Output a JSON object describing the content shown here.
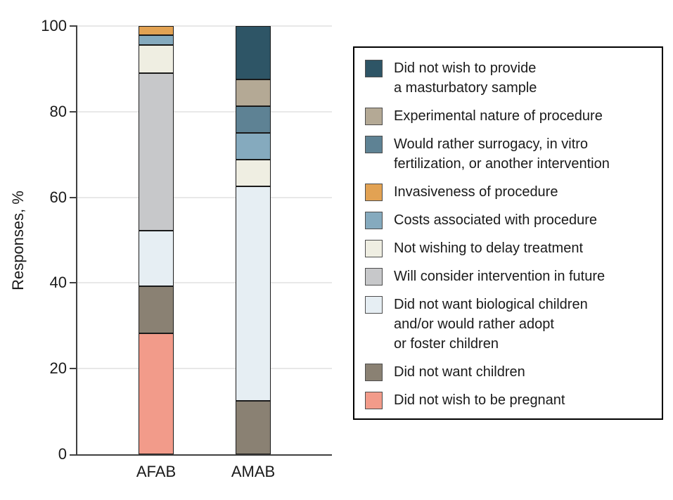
{
  "chart_data": {
    "type": "stacked_bar",
    "title": "",
    "ylabel": "Responses, %",
    "xlabel": "",
    "ylim": [
      0,
      100
    ],
    "yticks": [
      0,
      20,
      40,
      60,
      80,
      100
    ],
    "grid": "horizontal",
    "legend_position": "right",
    "categories": [
      "AFAB",
      "AMAB"
    ],
    "series": [
      {
        "name": "Did not wish to be pregnant",
        "color": "#F29B8A",
        "values": [
          28.2,
          0
        ]
      },
      {
        "name": "Did not want children",
        "color": "#8A8173",
        "values": [
          11.0,
          12.5
        ]
      },
      {
        "name": "Did not want biological children and/or would rather adopt or foster children",
        "color": "#E6EEF3",
        "values": [
          13.0,
          50.0
        ]
      },
      {
        "name": "Will consider intervention in future",
        "color": "#C7C8CA",
        "values": [
          36.8,
          0
        ]
      },
      {
        "name": "Not wishing to delay treatment",
        "color": "#EFEEE2",
        "values": [
          6.6,
          6.25
        ]
      },
      {
        "name": "Costs associated with procedure",
        "color": "#85AABE",
        "values": [
          2.2,
          6.25
        ]
      },
      {
        "name": "Invasiveness of procedure",
        "color": "#E2A253",
        "values": [
          2.2,
          0
        ]
      },
      {
        "name": "Would rather surrogacy, in vitro fertilization, or another intervention",
        "color": "#5E8294",
        "values": [
          0,
          6.25
        ]
      },
      {
        "name": "Experimental nature of procedure",
        "color": "#B4A995",
        "values": [
          0,
          6.25
        ]
      },
      {
        "name": "Did not wish to provide a masturbatory sample",
        "color": "#2E5566",
        "values": [
          0,
          12.5
        ]
      }
    ],
    "legend_items": [
      {
        "series": 9,
        "label": "Did not wish to provide\na masturbatory sample"
      },
      {
        "series": 8,
        "label": "Experimental nature of procedure"
      },
      {
        "series": 7,
        "label": "Would rather surrogacy, in vitro\nfertilization, or another intervention"
      },
      {
        "series": 6,
        "label": "Invasiveness of procedure"
      },
      {
        "series": 5,
        "label": "Costs associated with procedure"
      },
      {
        "series": 4,
        "label": "Not wishing to delay treatment"
      },
      {
        "series": 3,
        "label": "Will consider intervention in future"
      },
      {
        "series": 2,
        "label": "Did not want biological children\nand/or would rather adopt\nor foster children"
      },
      {
        "series": 1,
        "label": "Did not want children"
      },
      {
        "series": 0,
        "label": "Did not wish to be pregnant"
      }
    ]
  }
}
